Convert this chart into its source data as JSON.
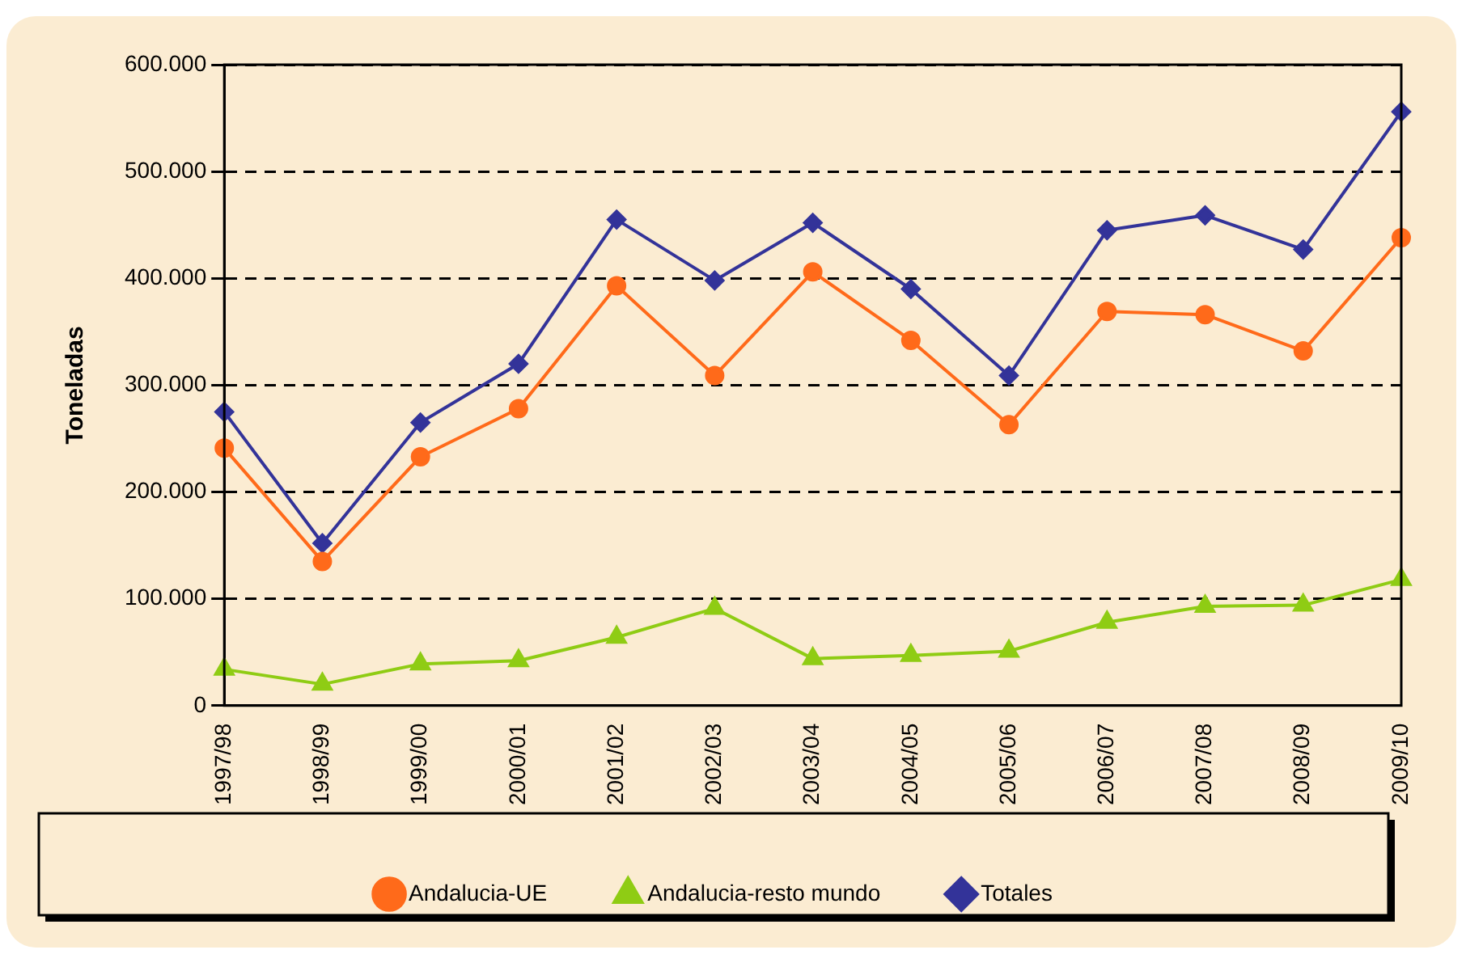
{
  "chart_data": {
    "type": "line",
    "ylabel": "Toneladas",
    "categories": [
      "1997/98",
      "1998/99",
      "1999/00",
      "2000/01",
      "2001/02",
      "2002/03",
      "2003/04",
      "2004/05",
      "2005/06",
      "2006/07",
      "2007/08",
      "2008/09",
      "2009/10"
    ],
    "series": [
      {
        "name": "Andalucia-UE",
        "color": "#ff6a1a",
        "marker": "circle",
        "values": [
          241000,
          135000,
          233000,
          278000,
          393000,
          309000,
          406000,
          342000,
          263000,
          369000,
          366000,
          332000,
          438000
        ]
      },
      {
        "name": "Andalucia-resto mundo",
        "color": "#8fcc14",
        "marker": "triangle",
        "values": [
          34000,
          20000,
          39000,
          42000,
          64000,
          91000,
          44000,
          47000,
          51000,
          78000,
          93000,
          94000,
          118000
        ]
      },
      {
        "name": "Totales",
        "color": "#333399",
        "marker": "diamond",
        "values": [
          275000,
          152000,
          265000,
          320000,
          455000,
          398000,
          452000,
          390000,
          309000,
          445000,
          459000,
          427000,
          556000
        ]
      }
    ],
    "ylim": [
      0,
      600000
    ],
    "yticks": [
      {
        "value": 0,
        "label": "0"
      },
      {
        "value": 100000,
        "label": "100.000"
      },
      {
        "value": 200000,
        "label": "200.000"
      },
      {
        "value": 300000,
        "label": "300.000"
      },
      {
        "value": 400000,
        "label": "400.000"
      },
      {
        "value": 500000,
        "label": "500.000"
      },
      {
        "value": 600000,
        "label": "600.000"
      }
    ],
    "grid": "y",
    "line_style": "solid",
    "legend": "bottom"
  }
}
